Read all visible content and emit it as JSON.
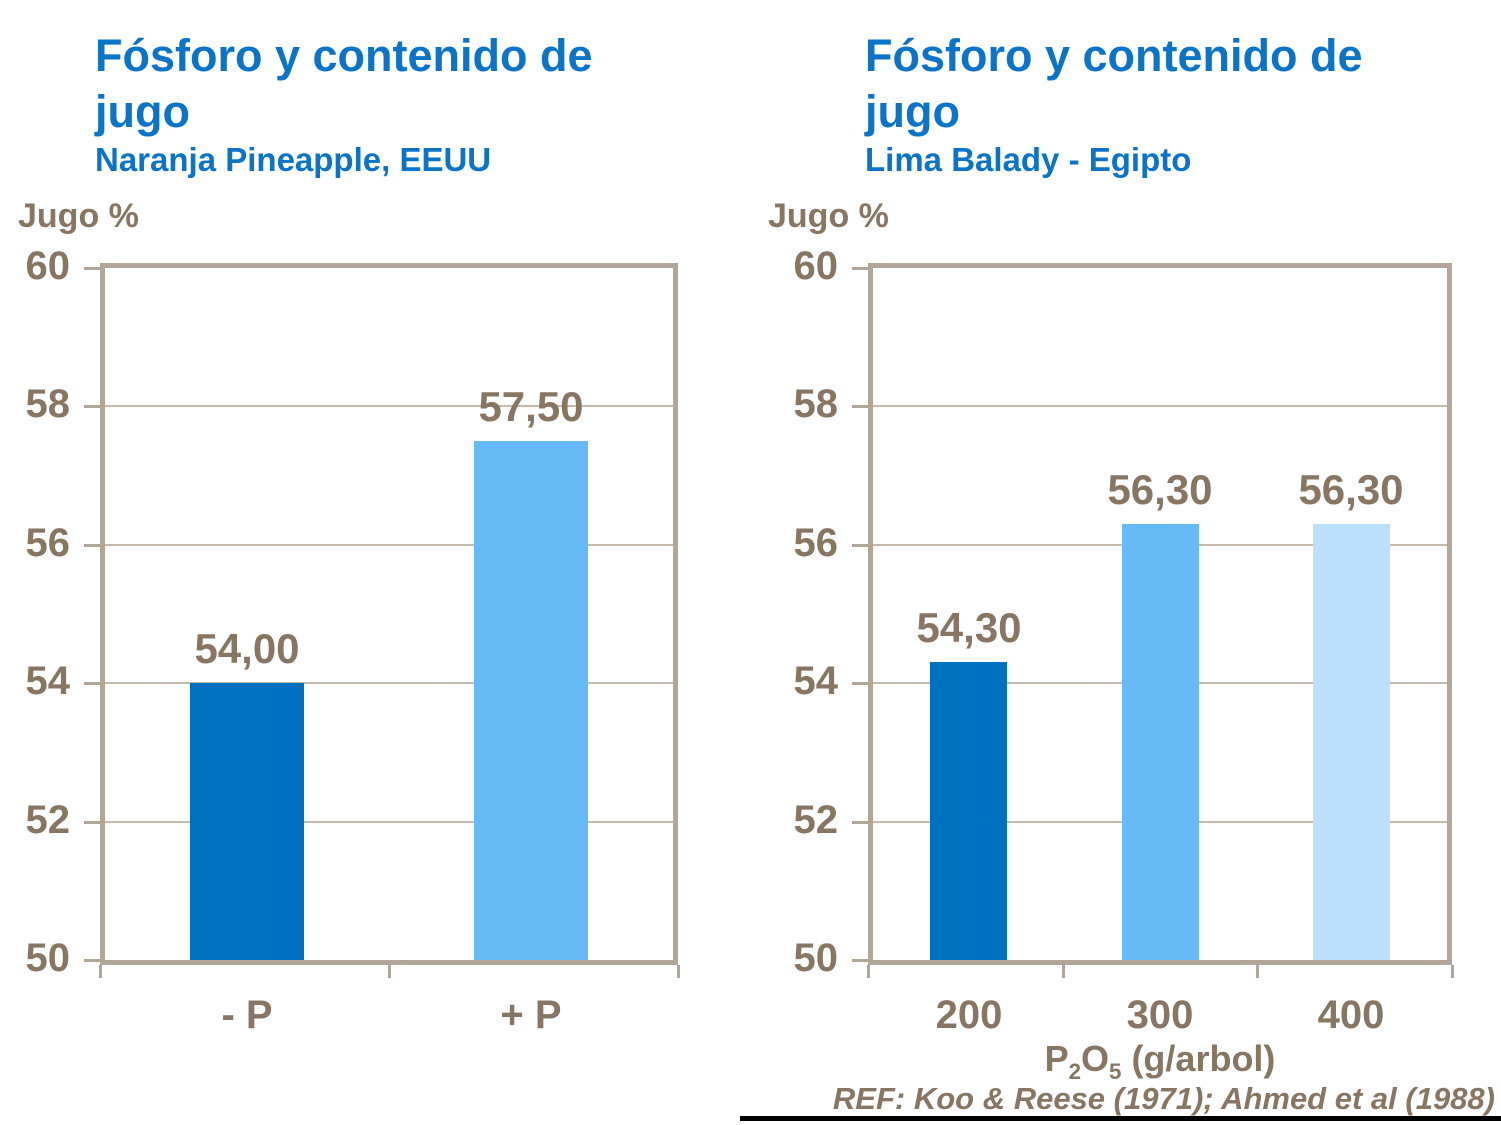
{
  "palette": {
    "title_blue": "#0B74C9",
    "text_brown": "#877663",
    "axis_tan": "#B2A698",
    "grid_tan": "#C6BAAC",
    "footer_line_black": "#000000"
  },
  "chart_data": [
    {
      "type": "bar",
      "title": "Fósforo y contenido de jugo",
      "title_lines": [
        "Fósforo y contenido de",
        "jugo"
      ],
      "subtitle": "Naranja Pineapple, EEUU",
      "ylabel": "Jugo %",
      "xlabel": "",
      "categories": [
        "- P",
        "+ P"
      ],
      "values": [
        54.0,
        57.5
      ],
      "value_labels": [
        "54,00",
        "57,50"
      ],
      "bar_colors": [
        "#0070C0",
        "#66BBF7"
      ],
      "ylim": [
        50,
        60
      ],
      "yticks": [
        50,
        52,
        54,
        56,
        58,
        60
      ],
      "grid": true,
      "legend": "none"
    },
    {
      "type": "bar",
      "title": "Fósforo y contenido de jugo",
      "title_lines": [
        "Fósforo y contenido de",
        "jugo"
      ],
      "subtitle": "Lima Balady - Egipto",
      "ylabel": "Jugo %",
      "xlabel": "P2O5 (g/arbol)",
      "xlabel_parts": {
        "base1": "P",
        "sub1": "2",
        "base2": "O",
        "sub2": "5",
        "rest": " (g/arbol)"
      },
      "categories": [
        "200",
        "300",
        "400"
      ],
      "values": [
        54.3,
        56.3,
        56.3
      ],
      "value_labels": [
        "54,30",
        "56,30",
        "56,30"
      ],
      "bar_colors": [
        "#0070C0",
        "#66BBF7",
        "#BCDFFB"
      ],
      "ylim": [
        50,
        60
      ],
      "yticks": [
        50,
        52,
        54,
        56,
        58,
        60
      ],
      "grid": true,
      "legend": "none"
    }
  ],
  "footer": {
    "reference": "REF: Koo & Reese (1971); Ahmed et al (1988)"
  }
}
